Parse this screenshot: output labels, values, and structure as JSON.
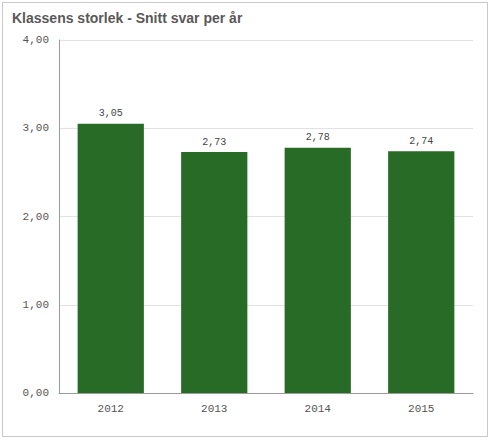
{
  "chart_data": {
    "type": "bar",
    "title": "Klassens storlek - Snitt svar per år",
    "categories": [
      "2012",
      "2013",
      "2014",
      "2015"
    ],
    "values": [
      3.05,
      2.73,
      2.78,
      2.74
    ],
    "value_labels": [
      "3,05",
      "2,73",
      "2,78",
      "2,74"
    ],
    "color": "#276b27",
    "ylim": [
      0,
      4
    ],
    "yticks": [
      {
        "value": 0,
        "label": "0,00"
      },
      {
        "value": 1,
        "label": "1,00"
      },
      {
        "value": 2,
        "label": "2,00"
      },
      {
        "value": 3,
        "label": "3,00"
      },
      {
        "value": 4,
        "label": "4,00"
      }
    ],
    "grid": true,
    "data_labels": true
  }
}
